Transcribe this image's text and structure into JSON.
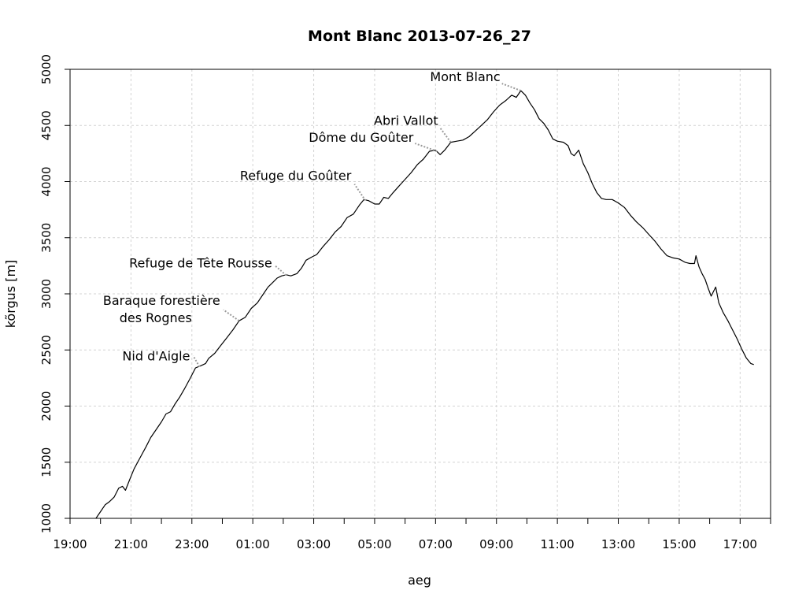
{
  "chart_data": {
    "type": "line",
    "title": "Mont Blanc 2013-07-26_27",
    "xlabel": "aeg",
    "ylabel": "kõrgus [m]",
    "x_unit": "hours since 19:00 on 2013-07-26",
    "xlim": [
      0,
      23
    ],
    "ylim": [
      1000,
      5000
    ],
    "x_ticks": [
      {
        "x": 0,
        "label": "19:00"
      },
      {
        "x": 2,
        "label": "21:00"
      },
      {
        "x": 4,
        "label": "23:00"
      },
      {
        "x": 6,
        "label": "01:00"
      },
      {
        "x": 8,
        "label": "03:00"
      },
      {
        "x": 10,
        "label": "05:00"
      },
      {
        "x": 12,
        "label": "07:00"
      },
      {
        "x": 14,
        "label": "09:00"
      },
      {
        "x": 16,
        "label": "11:00"
      },
      {
        "x": 18,
        "label": "13:00"
      },
      {
        "x": 20,
        "label": "15:00"
      },
      {
        "x": 22,
        "label": "17:00"
      }
    ],
    "y_ticks": [
      {
        "y": 1000,
        "label": "1000"
      },
      {
        "y": 1500,
        "label": "1500"
      },
      {
        "y": 2000,
        "label": "2000"
      },
      {
        "y": 2500,
        "label": "2500"
      },
      {
        "y": 3000,
        "label": "3000"
      },
      {
        "y": 3500,
        "label": "3500"
      },
      {
        "y": 4000,
        "label": "4000"
      },
      {
        "y": 4500,
        "label": "4500"
      },
      {
        "y": 5000,
        "label": "5000"
      }
    ],
    "grid": true,
    "series": [
      {
        "points": [
          [
            0.85,
            1000
          ],
          [
            1.0,
            1060
          ],
          [
            1.15,
            1120
          ],
          [
            1.3,
            1150
          ],
          [
            1.45,
            1190
          ],
          [
            1.6,
            1270
          ],
          [
            1.72,
            1285
          ],
          [
            1.82,
            1250
          ],
          [
            1.95,
            1340
          ],
          [
            2.1,
            1440
          ],
          [
            2.3,
            1540
          ],
          [
            2.5,
            1640
          ],
          [
            2.65,
            1720
          ],
          [
            2.85,
            1800
          ],
          [
            3.0,
            1860
          ],
          [
            3.15,
            1930
          ],
          [
            3.3,
            1950
          ],
          [
            3.45,
            2020
          ],
          [
            3.6,
            2080
          ],
          [
            3.75,
            2150
          ],
          [
            3.95,
            2250
          ],
          [
            4.12,
            2340
          ],
          [
            4.3,
            2360
          ],
          [
            4.45,
            2380
          ],
          [
            4.55,
            2425
          ],
          [
            4.75,
            2470
          ],
          [
            4.95,
            2540
          ],
          [
            5.15,
            2610
          ],
          [
            5.35,
            2680
          ],
          [
            5.55,
            2760
          ],
          [
            5.75,
            2790
          ],
          [
            5.95,
            2870
          ],
          [
            6.15,
            2920
          ],
          [
            6.35,
            3000
          ],
          [
            6.5,
            3060
          ],
          [
            6.65,
            3100
          ],
          [
            6.8,
            3140
          ],
          [
            6.95,
            3160
          ],
          [
            7.1,
            3170
          ],
          [
            7.25,
            3160
          ],
          [
            7.45,
            3180
          ],
          [
            7.6,
            3230
          ],
          [
            7.75,
            3300
          ],
          [
            7.95,
            3330
          ],
          [
            8.1,
            3350
          ],
          [
            8.3,
            3420
          ],
          [
            8.5,
            3480
          ],
          [
            8.7,
            3550
          ],
          [
            8.9,
            3600
          ],
          [
            9.1,
            3680
          ],
          [
            9.3,
            3710
          ],
          [
            9.5,
            3790
          ],
          [
            9.65,
            3840
          ],
          [
            9.8,
            3830
          ],
          [
            10.0,
            3800
          ],
          [
            10.15,
            3800
          ],
          [
            10.3,
            3860
          ],
          [
            10.45,
            3850
          ],
          [
            10.6,
            3900
          ],
          [
            10.8,
            3960
          ],
          [
            11.0,
            4020
          ],
          [
            11.2,
            4080
          ],
          [
            11.4,
            4150
          ],
          [
            11.6,
            4200
          ],
          [
            11.8,
            4270
          ],
          [
            12.0,
            4280
          ],
          [
            12.15,
            4240
          ],
          [
            12.3,
            4280
          ],
          [
            12.5,
            4350
          ],
          [
            12.7,
            4360
          ],
          [
            12.9,
            4370
          ],
          [
            13.1,
            4400
          ],
          [
            13.3,
            4450
          ],
          [
            13.5,
            4500
          ],
          [
            13.7,
            4550
          ],
          [
            13.9,
            4620
          ],
          [
            14.1,
            4680
          ],
          [
            14.3,
            4720
          ],
          [
            14.5,
            4770
          ],
          [
            14.65,
            4750
          ],
          [
            14.8,
            4810
          ],
          [
            14.95,
            4770
          ],
          [
            15.1,
            4700
          ],
          [
            15.25,
            4640
          ],
          [
            15.4,
            4560
          ],
          [
            15.55,
            4520
          ],
          [
            15.7,
            4460
          ],
          [
            15.85,
            4380
          ],
          [
            16.0,
            4360
          ],
          [
            16.2,
            4350
          ],
          [
            16.35,
            4320
          ],
          [
            16.45,
            4250
          ],
          [
            16.55,
            4230
          ],
          [
            16.7,
            4280
          ],
          [
            16.85,
            4160
          ],
          [
            17.0,
            4080
          ],
          [
            17.15,
            3980
          ],
          [
            17.3,
            3900
          ],
          [
            17.45,
            3850
          ],
          [
            17.6,
            3840
          ],
          [
            17.8,
            3840
          ],
          [
            18.0,
            3810
          ],
          [
            18.2,
            3770
          ],
          [
            18.4,
            3700
          ],
          [
            18.6,
            3640
          ],
          [
            18.8,
            3590
          ],
          [
            19.0,
            3530
          ],
          [
            19.2,
            3470
          ],
          [
            19.4,
            3400
          ],
          [
            19.6,
            3340
          ],
          [
            19.8,
            3320
          ],
          [
            20.0,
            3310
          ],
          [
            20.2,
            3280
          ],
          [
            20.35,
            3270
          ],
          [
            20.5,
            3270
          ],
          [
            20.55,
            3340
          ],
          [
            20.65,
            3240
          ],
          [
            20.75,
            3180
          ],
          [
            20.85,
            3130
          ],
          [
            20.95,
            3050
          ],
          [
            21.05,
            2980
          ],
          [
            21.2,
            3060
          ],
          [
            21.3,
            2920
          ],
          [
            21.45,
            2830
          ],
          [
            21.6,
            2760
          ],
          [
            21.75,
            2680
          ],
          [
            21.9,
            2600
          ],
          [
            22.05,
            2510
          ],
          [
            22.2,
            2430
          ],
          [
            22.35,
            2380
          ],
          [
            22.45,
            2370
          ]
        ]
      }
    ],
    "annotations": [
      {
        "label": "Nid d'Aigle",
        "x": 4.25,
        "y": 2350
      },
      {
        "label": "Baraque forestière",
        "label2": "des Rognes",
        "x": 5.55,
        "y": 2760
      },
      {
        "label": "Refuge de Tête Rousse",
        "x": 7.1,
        "y": 3165
      },
      {
        "label": "Refuge du Goûter",
        "x": 9.7,
        "y": 3830
      },
      {
        "label": "Dôme du Goûter",
        "x": 12.05,
        "y": 4270
      },
      {
        "label": "Abri Vallot",
        "x": 12.5,
        "y": 4350
      },
      {
        "label": "Mont Blanc",
        "x": 14.8,
        "y": 4810
      }
    ]
  }
}
